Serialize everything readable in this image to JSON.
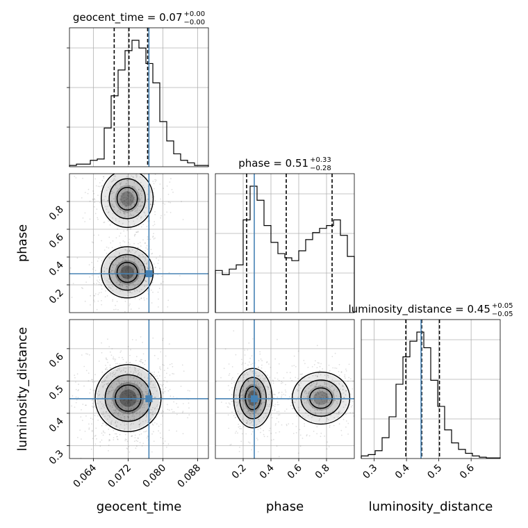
{
  "chart_data": {
    "type": "corner",
    "parameters": [
      "geocent_time",
      "phase",
      "luminosity_distance"
    ],
    "truth": {
      "geocent_time": 0.0768,
      "phase": 0.28,
      "luminosity_distance": 0.445
    },
    "truth_color": "#4682b4",
    "titles": [
      {
        "param": "geocent_time",
        "median": "0.07",
        "plus": "+0.00",
        "minus": "−0.00"
      },
      {
        "param": "phase",
        "median": "0.51",
        "plus": "+0.33",
        "minus": "−0.28"
      },
      {
        "param": "luminosity_distance",
        "median": "0.45",
        "plus": "+0.05",
        "minus": "−0.05"
      }
    ],
    "ranges": {
      "geocent_time": [
        0.0585,
        0.0905
      ],
      "phase": [
        0.0,
        1.0
      ],
      "luminosity_distance": [
        0.26,
        0.69
      ]
    },
    "ticks": {
      "geocent_time": [
        {
          "v": 0.064,
          "label": "0.064"
        },
        {
          "v": 0.072,
          "label": "0.072"
        },
        {
          "v": 0.08,
          "label": "0.080"
        },
        {
          "v": 0.088,
          "label": "0.088"
        }
      ],
      "phase_x": [
        {
          "v": 0.2,
          "label": "0.2"
        },
        {
          "v": 0.4,
          "label": "0.4"
        },
        {
          "v": 0.6,
          "label": "0.6"
        },
        {
          "v": 0.8,
          "label": "0.8"
        }
      ],
      "phase_y": [
        {
          "v": 0.2,
          "label": "0.2"
        },
        {
          "v": 0.4,
          "label": "0.4"
        },
        {
          "v": 0.6,
          "label": "0.6"
        },
        {
          "v": 0.8,
          "label": "0.8"
        }
      ],
      "luminosity_distance_x": [
        {
          "v": 0.3,
          "label": "0.3"
        },
        {
          "v": 0.4,
          "label": "0.4"
        },
        {
          "v": 0.5,
          "label": "0.5"
        },
        {
          "v": 0.6,
          "label": "0.6"
        }
      ],
      "luminosity_distance_y": [
        {
          "v": 0.3,
          "label": "0.3"
        },
        {
          "v": 0.4,
          "label": "0.4"
        },
        {
          "v": 0.5,
          "label": "0.5"
        },
        {
          "v": 0.6,
          "label": "0.6"
        }
      ]
    },
    "quantiles": {
      "geocent_time": [
        0.0688,
        0.0722,
        0.0765
      ],
      "phase": [
        0.225,
        0.51,
        0.84
      ],
      "luminosity_distance": [
        0.398,
        0.447,
        0.502
      ]
    },
    "histograms": {
      "geocent_time": [
        0.01,
        0.02,
        0.02,
        0.05,
        0.06,
        0.3,
        0.55,
        0.75,
        0.9,
        0.98,
        0.92,
        0.8,
        0.65,
        0.35,
        0.2,
        0.1,
        0.05,
        0.03,
        0.01,
        0.01
      ],
      "phase": [
        0.3,
        0.27,
        0.31,
        0.34,
        0.66,
        0.9,
        0.8,
        0.62,
        0.5,
        0.42,
        0.39,
        0.37,
        0.44,
        0.52,
        0.57,
        0.6,
        0.62,
        0.66,
        0.55,
        0.4
      ],
      "luminosity_distance": [
        0.02,
        0.03,
        0.06,
        0.16,
        0.32,
        0.57,
        0.78,
        0.9,
        0.97,
        0.85,
        0.6,
        0.4,
        0.22,
        0.12,
        0.07,
        0.04,
        0.02,
        0.01,
        0.005,
        0.005
      ]
    },
    "grid": true
  }
}
